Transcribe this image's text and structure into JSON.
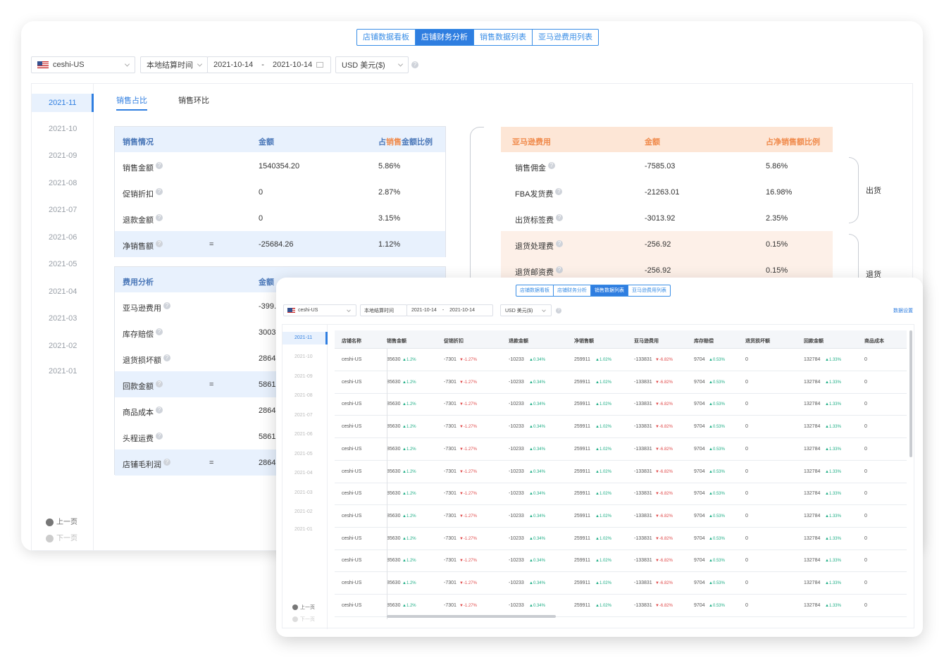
{
  "back": {
    "tabs": [
      "店铺数据看板",
      "店铺财务分析",
      "销售数据列表",
      "亚马逊费用列表"
    ],
    "active_tab": 1,
    "store": "ceshi-US",
    "time_type": "本地结算时间",
    "date_start": "2021-10-14",
    "date_sep": "-",
    "date_end": "2021-10-14",
    "currency": "USD 美元($)",
    "months": [
      "2021-11",
      "2021-10",
      "2021-09",
      "2021-08",
      "2021-07",
      "2021-06",
      "2021-05",
      "2021-04",
      "2021-03",
      "2021-02",
      "2021-01"
    ],
    "prev_page": "上一页",
    "next_page": "下一页",
    "subtabs": [
      "销售占比",
      "销售环比"
    ],
    "sales_table": {
      "headers": [
        "销售情况",
        "金额",
        "占销售金额比例"
      ],
      "header3_parts": [
        "占",
        "销售",
        "金额比例"
      ],
      "rows": [
        {
          "label": "销售金额",
          "eq": "",
          "amount": "1540354.20",
          "pct": "5.86%",
          "hl": false
        },
        {
          "label": "促销折扣",
          "eq": "",
          "amount": "0",
          "pct": "2.87%",
          "hl": false
        },
        {
          "label": "退款金额",
          "eq": "",
          "amount": "0",
          "pct": "3.15%",
          "hl": false
        },
        {
          "label": "净销售额",
          "eq": "=",
          "amount": "-25684.26",
          "pct": "1.12%",
          "hl": true
        }
      ]
    },
    "fee_table": {
      "headers": [
        "费用分析",
        "金额"
      ],
      "rows": [
        {
          "label": "亚马逊费用",
          "eq": "",
          "amount": "-399.",
          "hl": false
        },
        {
          "label": "库存赔偿",
          "eq": "",
          "amount": "3003.",
          "hl": false
        },
        {
          "label": "退货损坏额",
          "eq": "",
          "amount": "2864.",
          "hl": false
        },
        {
          "label": "回款金额",
          "eq": "=",
          "amount": "5861.",
          "hl": true
        },
        {
          "label": "商品成本",
          "eq": "",
          "amount": "2864.",
          "hl": false
        },
        {
          "label": "头程运费",
          "eq": "",
          "amount": "5861.",
          "hl": false
        },
        {
          "label": "店铺毛利润",
          "eq": "=",
          "amount": "2864.",
          "hl": true
        }
      ]
    },
    "amazon_table": {
      "headers": [
        "亚马逊费用",
        "金额",
        "占净销售额比例"
      ],
      "rows": [
        {
          "label": "销售佣金",
          "amount": "-7585.03",
          "pct": "5.86%",
          "hl": false
        },
        {
          "label": "FBA发货费",
          "amount": "-21263.01",
          "pct": "16.98%",
          "hl": false
        },
        {
          "label": "出货标签费",
          "amount": "-3013.92",
          "pct": "2.35%",
          "hl": false
        },
        {
          "label": "退货处理费",
          "amount": "-256.92",
          "pct": "0.15%",
          "hl": true
        },
        {
          "label": "退货邮资费",
          "amount": "-256.92",
          "pct": "0.15%",
          "hl": true
        }
      ],
      "brace_label": "出货",
      "brace_label2": "退货"
    }
  },
  "front": {
    "tabs": [
      "店铺数据看板",
      "店铺财务分析",
      "销售数据列表",
      "亚马逊费用列表"
    ],
    "active_tab": 2,
    "store": "ceshi-US",
    "time_type": "本地结算时间",
    "date_start": "2021-10-14",
    "date_sep": "-",
    "date_end": "2021-10-14",
    "currency": "USD 美元($)",
    "settings_link": "数据设置",
    "months": [
      "2021-11",
      "2021-10",
      "2021-09",
      "2021-08",
      "2021-07",
      "2021-06",
      "2021-05",
      "2021-04",
      "2021-03",
      "2021-02",
      "2021-01"
    ],
    "prev_page": "上一页",
    "next_page": "下一页",
    "columns": [
      "店铺名称",
      "销售金额",
      "促销折扣",
      "退款金额",
      "净销售额",
      "亚马逊费用",
      "库存赔偿",
      "退货损坏额",
      "回款金额",
      "商品成本"
    ],
    "rows": [
      [
        "ceshi-US",
        "85630",
        "▲1.2%",
        "-7301",
        "▼-1.27%",
        "-10233",
        "▲0.34%",
        "259911",
        "▲1.02%",
        "-133831",
        "▼-6.82%",
        "9704",
        "▲0.53%",
        "0",
        "132784",
        "▲1.33%",
        "0"
      ],
      [
        "ceshi-US",
        "85630",
        "▲1.2%",
        "-7301",
        "▼-1.27%",
        "-10233",
        "▲0.34%",
        "259911",
        "▲1.02%",
        "-133831",
        "▼-6.82%",
        "9704",
        "▲0.53%",
        "0",
        "132784",
        "▲1.33%",
        "0"
      ],
      [
        "ceshi-US",
        "85630",
        "▲1.2%",
        "-7301",
        "▼-1.27%",
        "-10233",
        "▲0.34%",
        "259911",
        "▲1.02%",
        "-133831",
        "▼-6.82%",
        "9704",
        "▲0.53%",
        "0",
        "132784",
        "▲1.33%",
        "0"
      ],
      [
        "ceshi-US",
        "85630",
        "▲1.2%",
        "-7301",
        "▼-1.27%",
        "-10233",
        "▲0.34%",
        "259911",
        "▲1.02%",
        "-133831",
        "▼-6.82%",
        "9704",
        "▲0.53%",
        "0",
        "132784",
        "▲1.33%",
        "0"
      ],
      [
        "ceshi-US",
        "85630",
        "▲1.2%",
        "-7301",
        "▼-1.27%",
        "-10233",
        "▲0.34%",
        "259911",
        "▲1.02%",
        "-133831",
        "▼-6.82%",
        "9704",
        "▲0.53%",
        "0",
        "132784",
        "▲1.33%",
        "0"
      ],
      [
        "ceshi-US",
        "85630",
        "▲1.2%",
        "-7301",
        "▼-1.27%",
        "-10233",
        "▲0.34%",
        "259911",
        "▲1.02%",
        "-133831",
        "▼-6.82%",
        "9704",
        "▲0.53%",
        "0",
        "132784",
        "▲1.33%",
        "0"
      ],
      [
        "ceshi-US",
        "85630",
        "▲1.2%",
        "-7301",
        "▼-1.27%",
        "-10233",
        "▲0.34%",
        "259911",
        "▲1.02%",
        "-133831",
        "▼-6.82%",
        "9704",
        "▲0.53%",
        "0",
        "132784",
        "▲1.33%",
        "0"
      ],
      [
        "ceshi-US",
        "85630",
        "▲1.2%",
        "-7301",
        "▼-1.27%",
        "-10233",
        "▲0.34%",
        "259911",
        "▲1.02%",
        "-133831",
        "▼-6.82%",
        "9704",
        "▲0.53%",
        "0",
        "132784",
        "▲1.33%",
        "0"
      ],
      [
        "ceshi-US",
        "85630",
        "▲1.2%",
        "-7301",
        "▼-1.27%",
        "-10233",
        "▲0.34%",
        "259911",
        "▲1.02%",
        "-133831",
        "▼-6.82%",
        "9704",
        "▲0.53%",
        "0",
        "132784",
        "▲1.33%",
        "0"
      ],
      [
        "ceshi-US",
        "85630",
        "▲1.2%",
        "-7301",
        "▼-1.27%",
        "-10233",
        "▲0.34%",
        "259911",
        "▲1.02%",
        "-133831",
        "▼-6.82%",
        "9704",
        "▲0.53%",
        "0",
        "132784",
        "▲1.33%",
        "0"
      ],
      [
        "ceshi-US",
        "85630",
        "▲1.2%",
        "-7301",
        "▼-1.27%",
        "-10233",
        "▲0.34%",
        "259911",
        "▲1.02%",
        "-133831",
        "▼-6.82%",
        "9704",
        "▲0.53%",
        "0",
        "132784",
        "▲1.33%",
        "0"
      ],
      [
        "ceshi-US",
        "85630",
        "▲1.2%",
        "-7301",
        "▼-1.27%",
        "-10233",
        "▲0.34%",
        "259911",
        "▲1.02%",
        "-133831",
        "▼-6.82%",
        "9704",
        "▲0.53%",
        "0",
        "132784",
        "▲1.33%",
        "0"
      ]
    ]
  },
  "colors": {
    "accent": "#2f7ee0",
    "up": "#1fae86",
    "down": "#e04a4a",
    "orange": "#f08a4b",
    "hl_blue": "#e8f1fd",
    "hl_orange": "#fdf0e8"
  }
}
